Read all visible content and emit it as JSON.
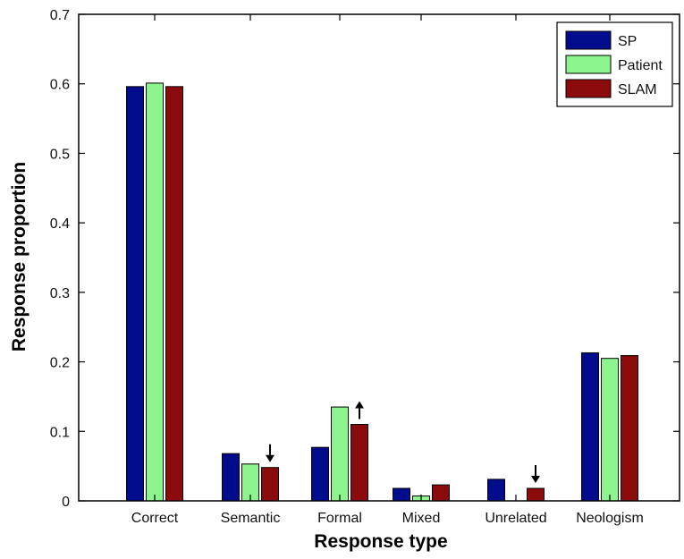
{
  "colors": {
    "SP": "#000c8c",
    "Patient": "#8df58d",
    "SLAM": "#8b0a0c",
    "axis": "#000000",
    "background": "#ffffff"
  },
  "chart_data": {
    "type": "bar",
    "categories": [
      "Correct",
      "Semantic",
      "Formal",
      "Mixed",
      "Unrelated",
      "Neologism"
    ],
    "series": [
      {
        "name": "SP",
        "values": [
          0.596,
          0.068,
          0.077,
          0.018,
          0.031,
          0.213
        ]
      },
      {
        "name": "Patient",
        "values": [
          0.601,
          0.053,
          0.135,
          0.007,
          0.0,
          0.205
        ]
      },
      {
        "name": "SLAM",
        "values": [
          0.596,
          0.048,
          0.11,
          0.023,
          0.018,
          0.209
        ]
      }
    ],
    "xlabel": "Response type",
    "ylabel": "Response proportion",
    "ylim": [
      0,
      0.7
    ],
    "yticks": [
      0,
      0.1,
      0.2,
      0.3,
      0.4,
      0.5,
      0.6,
      0.7
    ],
    "ytick_labels": [
      "0",
      "0.1",
      "0.2",
      "0.3",
      "0.4",
      "0.5",
      "0.6",
      "0.7"
    ],
    "grid": false,
    "legend_position": "top-right",
    "annotations": [
      {
        "type": "arrow-down",
        "category": "Semantic",
        "series": "SLAM"
      },
      {
        "type": "arrow-up",
        "category": "Formal",
        "series": "SLAM"
      },
      {
        "type": "arrow-down",
        "category": "Unrelated",
        "series": "SLAM"
      }
    ]
  }
}
